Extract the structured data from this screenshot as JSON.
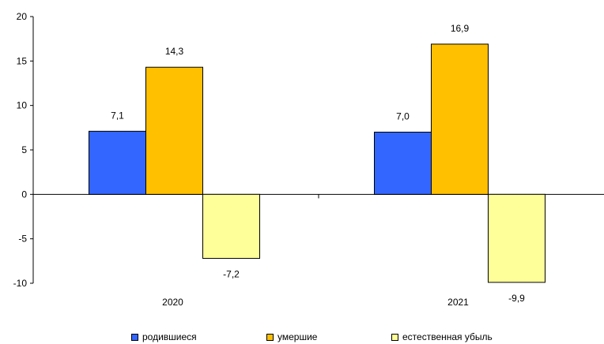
{
  "chart_data": {
    "type": "bar",
    "categories": [
      "2020",
      "2021"
    ],
    "series": [
      {
        "name": "родившиеся",
        "values": [
          7.1,
          7.0
        ],
        "labels": [
          "7,1",
          "7,0"
        ],
        "color": "#3366ff"
      },
      {
        "name": "умершие",
        "values": [
          14.3,
          16.9
        ],
        "labels": [
          "14,3",
          "16,9"
        ],
        "color": "#ffc000"
      },
      {
        "name": "естественная убыль",
        "values": [
          -7.2,
          -9.9
        ],
        "labels": [
          "-7,2",
          "-9,9"
        ],
        "color": "#ffff99"
      }
    ],
    "yticks": [
      "20",
      "15",
      "10",
      "5",
      "0",
      "-5",
      "-10"
    ],
    "ylim": [
      -10,
      20
    ],
    "grid": false,
    "legend_position": "bottom"
  }
}
